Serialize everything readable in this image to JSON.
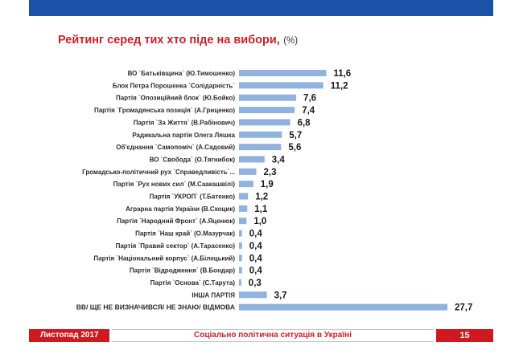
{
  "header": {
    "title": "Рейтинг серед тих хто піде на вибори,",
    "unit": "(%)"
  },
  "colors": {
    "bar": "#8fb2de",
    "title": "#c8202a",
    "topbar": "#1b52a8",
    "footer_red": "#d0181f"
  },
  "chart_data": {
    "type": "bar",
    "orientation": "horizontal",
    "title": "Рейтинг серед тих хто піде на вибори, (%)",
    "categories": [
      "ВО `Батьківщина` (Ю.Тимошенко)",
      "Блок Петра Порошенка `Солідарність`",
      "Партія `Опозиційний блок` (Ю.Бойко)",
      "Партія `Громадянська позиція` (А.Гриценко)",
      "Партія `За Життя` (В.Рабінович)",
      "Радикальна партія Олега Ляшка",
      "Об'єднання `Самопоміч` (А.Садовий)",
      "ВО `Свобода` (О.Тягнибок)",
      "Громадсько-політичний рух `Справедливість`...",
      "Партія `Рух нових сил` (М.Саакашвілі)",
      "Партія `УКРОП` (Т.Батенко)",
      "Аграрна партія України (В.Скоцик)",
      "Партія `Народний Фронт` (А.Яценюк)",
      "Партія `Наш край` (О.Мазурчак)",
      "Партія `Правий сектор` (А.Тарасенко)",
      "Партія `Національний корпус` (А.Білецький)",
      "Партія `Відродження` (В.Бондар)",
      "Партія `Основа` (С.Тарута)",
      "ІНША ПАРТІЯ",
      "ВВ/ ЩЕ НЕ ВИЗНАЧИВСЯ/ НЕ ЗНАЮ/ ВІДМОВА"
    ],
    "values": [
      11.6,
      11.2,
      7.6,
      7.4,
      6.8,
      5.7,
      5.6,
      3.4,
      2.3,
      1.9,
      1.2,
      1.1,
      1.0,
      0.4,
      0.4,
      0.4,
      0.4,
      0.3,
      3.7,
      27.7
    ],
    "value_labels": [
      "11,6",
      "11,2",
      "7,6",
      "7,4",
      "6,8",
      "5,7",
      "5,6",
      "3,4",
      "2,3",
      "1,9",
      "1,2",
      "1,1",
      "1,0",
      "0,4",
      "0,4",
      "0,4",
      "0,4",
      "0,3",
      "3,7",
      "27,7"
    ],
    "xlim": [
      0,
      27.7
    ],
    "grid": false,
    "legend": "none"
  },
  "footer": {
    "date": "Листопад 2017",
    "subject": "Соціально політична ситуація в Україні",
    "page": "15"
  }
}
